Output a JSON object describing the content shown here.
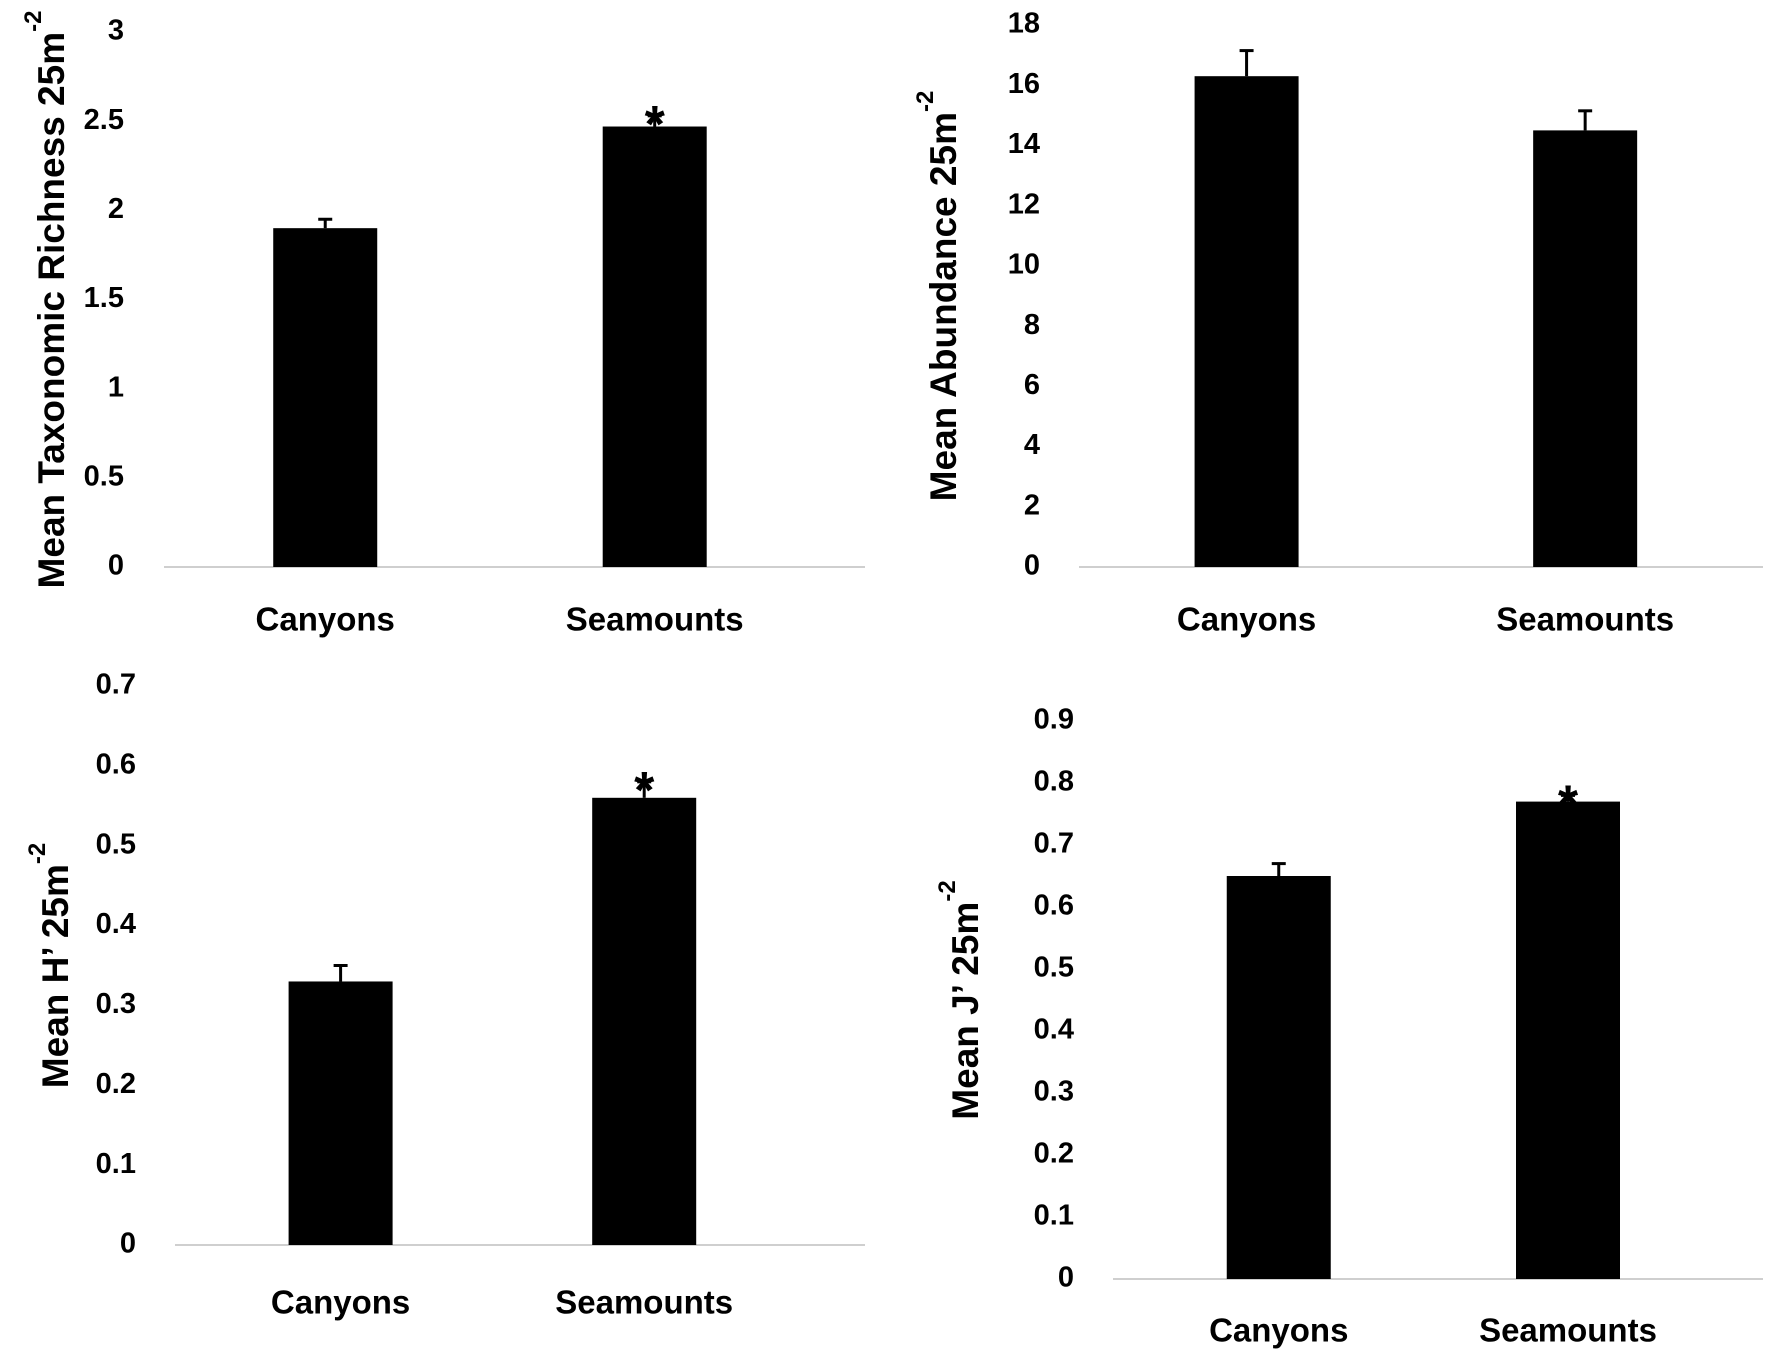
{
  "chart_data": [
    {
      "type": "bar",
      "y_label": "Mean Taxonomic Richness 25m",
      "y_label_superscript": "-2",
      "categories": [
        "Canyons",
        "Seamounts"
      ],
      "values": [
        1.9,
        2.47
      ],
      "errors": [
        0.05,
        0.06
      ],
      "color": "#000000",
      "ylim": [
        0,
        3
      ],
      "yticks": [
        0,
        0.5,
        1,
        1.5,
        2,
        2.5,
        3
      ],
      "annotations": [
        {
          "text": "*",
          "at": "Seamounts"
        }
      ]
    },
    {
      "type": "bar",
      "y_label": "Mean Abundance 25m",
      "y_label_superscript": "-2",
      "categories": [
        "Canyons",
        "Seamounts"
      ],
      "values": [
        16.3,
        14.5
      ],
      "errors": [
        0.85,
        0.65
      ],
      "color": "#000000",
      "ylim": [
        0,
        18
      ],
      "yticks": [
        0,
        2,
        4,
        6,
        8,
        10,
        12,
        14,
        16,
        18
      ],
      "annotations": []
    },
    {
      "type": "bar",
      "y_label": "Mean H’ 25m",
      "y_label_superscript": "-2",
      "categories": [
        "Canyons",
        "Seamounts"
      ],
      "values": [
        0.33,
        0.56
      ],
      "errors": [
        0.02,
        0.02
      ],
      "color": "#000000",
      "ylim": [
        0,
        0.7
      ],
      "yticks": [
        0,
        0.1,
        0.2,
        0.3,
        0.4,
        0.5,
        0.6,
        0.7
      ],
      "annotations": [
        {
          "text": "*",
          "at": "Seamounts"
        }
      ]
    },
    {
      "type": "bar",
      "y_label": "Mean J’ 25m",
      "y_label_superscript": "-2",
      "categories": [
        "Canyons",
        "Seamounts"
      ],
      "values": [
        0.65,
        0.77
      ],
      "errors": [
        0.02,
        0.01
      ],
      "color": "#000000",
      "ylim": [
        0,
        0.9
      ],
      "yticks": [
        0,
        0.1,
        0.2,
        0.3,
        0.4,
        0.5,
        0.6,
        0.7,
        0.8,
        0.9
      ],
      "annotations": [
        {
          "text": "*",
          "at": "Seamounts"
        }
      ]
    }
  ]
}
